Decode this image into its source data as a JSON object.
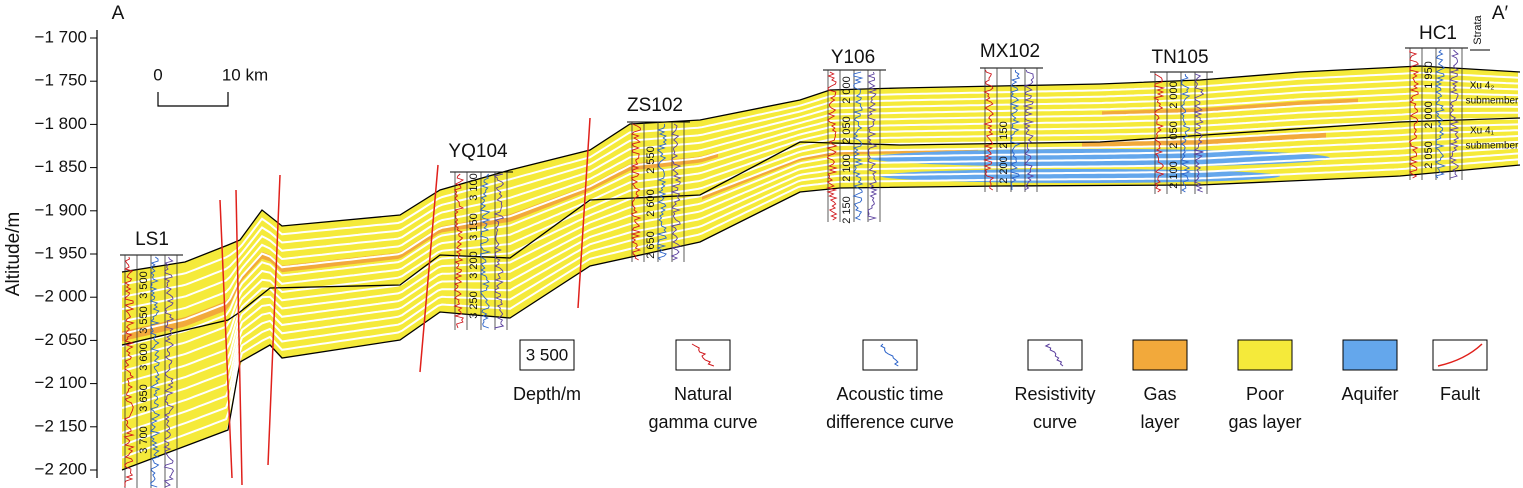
{
  "corner_labels": {
    "left": "A",
    "right": "A′"
  },
  "axis": {
    "title": "Altitude/m",
    "ticks": [
      {
        "value": -1700,
        "label": "−1 700"
      },
      {
        "value": -1750,
        "label": "−1 750"
      },
      {
        "value": -1800,
        "label": "−1 800"
      },
      {
        "value": -1850,
        "label": "−1 850"
      },
      {
        "value": -1900,
        "label": "−1 900"
      },
      {
        "value": -1950,
        "label": "−1 950"
      },
      {
        "value": -2000,
        "label": "−2 000"
      },
      {
        "value": -2050,
        "label": "−2 050"
      },
      {
        "value": -2100,
        "label": "−2 100"
      },
      {
        "value": -2150,
        "label": "−2 150"
      },
      {
        "value": -2200,
        "label": "−2 200"
      }
    ]
  },
  "scale_bar": {
    "start": "0",
    "end": "10 km"
  },
  "wells": [
    {
      "name": "LS1",
      "depths": [
        "3 500",
        "3 550",
        "3 600",
        "3 650",
        "3 700"
      ]
    },
    {
      "name": "YQ104",
      "depths": [
        "3 100",
        "3 150",
        "3 200",
        "3 250"
      ]
    },
    {
      "name": "ZS102",
      "depths": [
        "2 550",
        "2 600",
        "2 650"
      ]
    },
    {
      "name": "Y106",
      "depths": [
        "2 000",
        "2 050",
        "2 100",
        "2 150"
      ]
    },
    {
      "name": "MX102",
      "depths": [
        "2 150",
        "2 200"
      ]
    },
    {
      "name": "TN105",
      "depths": [
        "2 000",
        "2 050",
        "2 100"
      ]
    },
    {
      "name": "HC1",
      "depths": [
        "1 950",
        "2 000",
        "2 050"
      ]
    }
  ],
  "strata": {
    "title": "Strata",
    "units": [
      {
        "lines": [
          "Xu 4₂",
          "submember"
        ]
      },
      {
        "lines": [
          "Xu 4₁",
          "submember"
        ]
      }
    ]
  },
  "legend": [
    {
      "sample": "3 500",
      "label": [
        "Depth/m"
      ]
    },
    {
      "label": [
        "Natural",
        "gamma curve"
      ]
    },
    {
      "label": [
        "Acoustic time",
        "difference curve"
      ]
    },
    {
      "label": [
        "Resistivity",
        "curve"
      ]
    },
    {
      "label": [
        "Gas",
        "layer"
      ]
    },
    {
      "label": [
        "Poor",
        "gas layer"
      ]
    },
    {
      "label": [
        "Aquifer"
      ]
    },
    {
      "label": [
        "Fault"
      ]
    }
  ]
}
